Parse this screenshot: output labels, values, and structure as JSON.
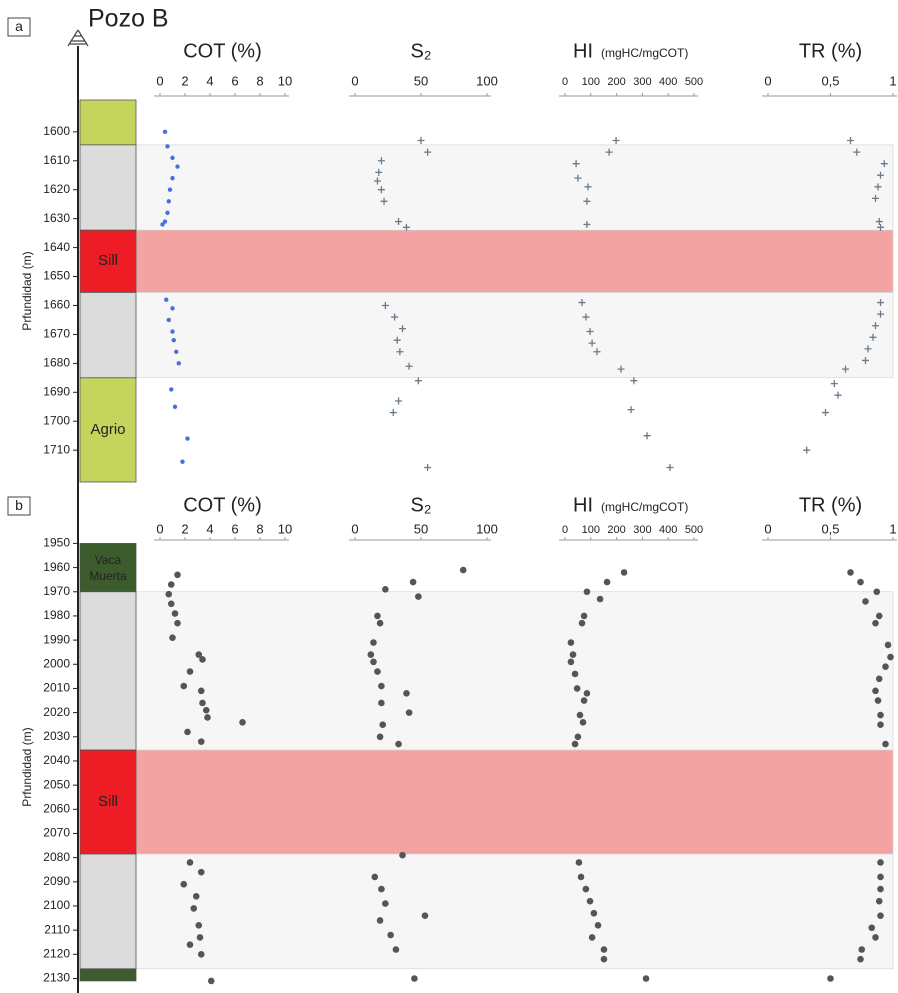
{
  "title": "Pozo B",
  "chart_data": [
    {
      "type": "scatter",
      "panel": "a",
      "ylabel": "Prfundidad (m)",
      "ylim": [
        1589,
        1721
      ],
      "yticks": [
        1600,
        1610,
        1620,
        1630,
        1640,
        1650,
        1660,
        1670,
        1680,
        1690,
        1700,
        1710
      ],
      "lithology": [
        {
          "from": 1589,
          "to": 1604.5,
          "color": "#c5d45c"
        },
        {
          "from": 1604.5,
          "to": 1634,
          "color": "#dcdcdc",
          "band_color": "#f6f6f6"
        },
        {
          "from": 1634,
          "to": 1655.5,
          "color": "#ee1c24",
          "band_color": "#f4a3a3",
          "label": "Sill"
        },
        {
          "from": 1655.5,
          "to": 1685,
          "color": "#dcdcdc",
          "band_color": "#f6f6f6"
        },
        {
          "from": 1685,
          "to": 1721,
          "color": "#c5d45c",
          "label": "Agrio"
        }
      ],
      "tracks": [
        {
          "title": "COT (%)",
          "xlim": [
            0,
            10
          ],
          "xticks": [
            0,
            2,
            4,
            6,
            8,
            10
          ],
          "color": "#4a6fd8",
          "marker": "dot",
          "depth": [
            1600,
            1605,
            1609,
            1612,
            1616,
            1620,
            1624,
            1628,
            1631,
            1632,
            1658,
            1661,
            1665,
            1669,
            1672,
            1676,
            1680,
            1689,
            1695,
            1706,
            1714
          ],
          "values": [
            0.4,
            0.6,
            1.0,
            1.4,
            1.0,
            0.8,
            0.7,
            0.6,
            0.4,
            0.2,
            0.5,
            1.0,
            0.7,
            1.0,
            1.1,
            1.3,
            1.5,
            0.9,
            1.2,
            2.2,
            1.8
          ]
        },
        {
          "title": "S₂",
          "xlim": [
            0,
            100
          ],
          "xticks": [
            0,
            50,
            100
          ],
          "color": "#6a7a8a",
          "marker": "cross",
          "depth": [
            1603,
            1607,
            1610,
            1614,
            1617,
            1620,
            1624,
            1631,
            1633,
            1660,
            1664,
            1668,
            1672,
            1676,
            1681,
            1686,
            1693,
            1697,
            1716
          ],
          "values": [
            50,
            55,
            20,
            18,
            17,
            20,
            22,
            33,
            39,
            23,
            30,
            36,
            32,
            34,
            41,
            48,
            33,
            29,
            55
          ]
        },
        {
          "title": "HI",
          "unit": "(mgHC/mgCOT)",
          "xlim": [
            0,
            500
          ],
          "xticks": [
            0,
            100,
            200,
            300,
            400,
            500
          ],
          "color": "#6a7a8a",
          "marker": "cross",
          "depth": [
            1603,
            1607,
            1611,
            1616,
            1619,
            1624,
            1632,
            1659,
            1664,
            1669,
            1673,
            1676,
            1682,
            1686,
            1696,
            1705,
            1716
          ],
          "values": [
            198,
            171,
            43,
            50,
            89,
            85,
            85,
            66,
            81,
            97,
            105,
            124,
            217,
            267,
            256,
            318,
            407
          ]
        },
        {
          "title": "TR (%)",
          "xlim": [
            0,
            1
          ],
          "xticks": [
            0,
            {
              "value": 0.5,
              "label": "0,5"
            },
            1
          ],
          "color": "#6a7a8a",
          "marker": "cross",
          "depth": [
            1603,
            1607,
            1611,
            1615,
            1619,
            1623,
            1631,
            1633,
            1659,
            1663,
            1667,
            1671,
            1675,
            1679,
            1682,
            1687,
            1691,
            1697,
            1710
          ],
          "values": [
            0.66,
            0.71,
            0.93,
            0.9,
            0.88,
            0.86,
            0.89,
            0.9,
            0.9,
            0.9,
            0.86,
            0.84,
            0.8,
            0.78,
            0.62,
            0.53,
            0.56,
            0.46,
            0.31
          ]
        }
      ]
    },
    {
      "type": "scatter",
      "panel": "b",
      "ylabel": "Prfundidad (m)",
      "ylim": [
        1949,
        2136
      ],
      "yticks": [
        1950,
        1960,
        1970,
        1980,
        1990,
        2000,
        2010,
        2020,
        2030,
        2040,
        2050,
        2060,
        2070,
        2080,
        2090,
        2100,
        2110,
        2120,
        2130
      ],
      "lithology": [
        {
          "from": 1950,
          "to": 1970,
          "color": "#3d5c2e",
          "label": "Vaca Muerta"
        },
        {
          "from": 1970,
          "to": 2035.5,
          "color": "#dcdcdc",
          "band_color": "#f6f6f6"
        },
        {
          "from": 2035.5,
          "to": 2078.5,
          "color": "#ee1c24",
          "band_color": "#f4a3a3",
          "label": "Sill"
        },
        {
          "from": 2078.5,
          "to": 2126,
          "color": "#dcdcdc",
          "band_color": "#f6f6f6"
        },
        {
          "from": 2126,
          "to": 2131,
          "color": "#3d5c2e"
        }
      ],
      "tracks": [
        {
          "title": "COT (%)",
          "xlim": [
            0,
            10
          ],
          "xticks": [
            0,
            2,
            4,
            6,
            8,
            10
          ],
          "color": "#555555",
          "marker": "dot",
          "depth": [
            1963,
            1967,
            1971,
            1975,
            1979,
            1983,
            1989,
            1996,
            1998,
            2003,
            2009,
            2011,
            2016,
            2019,
            2022,
            2024,
            2028,
            2032,
            2082,
            2086,
            2091,
            2096,
            2101,
            2108,
            2113,
            2116,
            2120,
            2131
          ],
          "values": [
            1.4,
            0.9,
            0.7,
            0.9,
            1.2,
            1.4,
            1.0,
            3.1,
            3.4,
            2.4,
            1.9,
            3.3,
            3.4,
            3.7,
            3.8,
            6.6,
            2.2,
            3.3,
            2.4,
            3.3,
            1.9,
            2.9,
            2.7,
            3.1,
            3.2,
            2.4,
            3.3,
            4.1
          ]
        },
        {
          "title": "S₂",
          "xlim": [
            0,
            100
          ],
          "xticks": [
            0,
            50,
            100
          ],
          "color": "#555555",
          "marker": "dot",
          "depth": [
            1961,
            1966,
            1969,
            1972,
            1980,
            1983,
            1991,
            1996,
            1999,
            2003,
            2009,
            2012,
            2016,
            2020,
            2025,
            2030,
            2033,
            2079,
            2088,
            2093,
            2099,
            2104,
            2106,
            2112,
            2118,
            2130
          ],
          "values": [
            82,
            44,
            23,
            48,
            17,
            19,
            14,
            12,
            14,
            17,
            20,
            39,
            20,
            41,
            21,
            19,
            33,
            36,
            15,
            20,
            23,
            53,
            19,
            27,
            31,
            45
          ]
        },
        {
          "title": "HI",
          "unit": "(mgHC/mgCOT)",
          "xlim": [
            0,
            500
          ],
          "xticks": [
            0,
            100,
            200,
            300,
            400,
            500
          ],
          "color": "#555555",
          "marker": "dot",
          "depth": [
            1962,
            1966,
            1970,
            1973,
            1980,
            1983,
            1991,
            1996,
            1999,
            2004,
            2010,
            2012,
            2015,
            2021,
            2024,
            2030,
            2033,
            2082,
            2088,
            2093,
            2098,
            2103,
            2108,
            2113,
            2118,
            2122,
            2130
          ],
          "values": [
            229,
            163,
            85,
            136,
            74,
            66,
            23,
            31,
            23,
            39,
            47,
            85,
            74,
            58,
            70,
            50,
            39,
            54,
            62,
            81,
            97,
            112,
            128,
            105,
            151,
            151,
            314
          ]
        },
        {
          "title": "TR (%)",
          "xlim": [
            0,
            1
          ],
          "xticks": [
            0,
            {
              "value": 0.5,
              "label": "0,5"
            },
            1
          ],
          "color": "#555555",
          "marker": "dot",
          "depth": [
            1962,
            1966,
            1970,
            1974,
            1980,
            1983,
            1992,
            1997,
            2001,
            2006,
            2011,
            2015,
            2021,
            2025,
            2033,
            2082,
            2088,
            2093,
            2098,
            2104,
            2109,
            2113,
            2118,
            2122,
            2130
          ],
          "values": [
            0.66,
            0.74,
            0.87,
            0.78,
            0.89,
            0.86,
            0.96,
            0.98,
            0.94,
            0.89,
            0.86,
            0.88,
            0.9,
            0.9,
            0.94,
            0.9,
            0.9,
            0.9,
            0.89,
            0.9,
            0.83,
            0.86,
            0.75,
            0.74,
            0.5
          ]
        }
      ]
    }
  ]
}
